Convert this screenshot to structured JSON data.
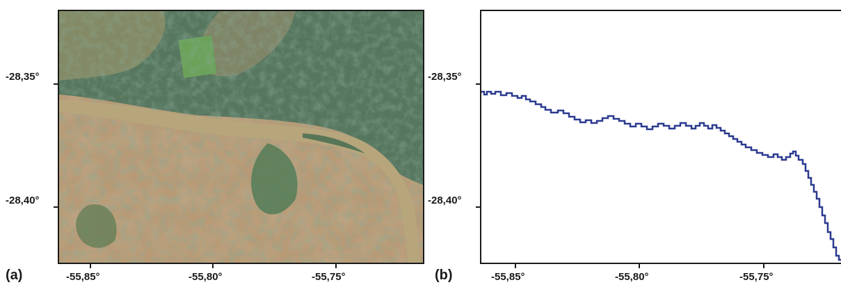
{
  "panel_a": {
    "label": "(a)",
    "y_ticks": [
      "-28,35°",
      "-28,40°"
    ],
    "x_ticks": [
      "-55,85°",
      "-55,80°",
      "-55,75°"
    ],
    "colors": {
      "river": "#b7a57c",
      "forest": "#3f6a4f",
      "field": "#c9a27a",
      "pasture": "#7d9a6a"
    }
  },
  "panel_b": {
    "label": "(b)",
    "y_ticks": [
      "-28,35°",
      "-28,40°"
    ],
    "x_ticks": [
      "-55,85°",
      "-55,80°",
      "-55,75°"
    ],
    "line_color": "#2b3a8f"
  }
}
